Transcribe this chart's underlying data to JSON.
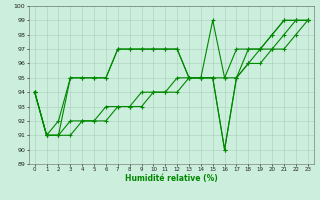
{
  "title": "",
  "xlabel": "Humidité relative (%)",
  "ylabel": "",
  "xlim": [
    -0.5,
    23.5
  ],
  "ylim": [
    89,
    100
  ],
  "yticks": [
    89,
    90,
    91,
    92,
    93,
    94,
    95,
    96,
    97,
    98,
    99,
    100
  ],
  "xticks": [
    0,
    1,
    2,
    3,
    4,
    5,
    6,
    7,
    8,
    9,
    10,
    11,
    12,
    13,
    14,
    15,
    16,
    17,
    18,
    19,
    20,
    21,
    22,
    23
  ],
  "background_color": "#cceedd",
  "grid_color": "#aaccbb",
  "line_color": "#008800",
  "lines": [
    [
      94,
      91,
      91,
      95,
      95,
      95,
      95,
      97,
      97,
      97,
      97,
      97,
      97,
      95,
      95,
      99,
      95,
      95,
      97,
      97,
      98,
      99,
      99,
      99
    ],
    [
      94,
      91,
      92,
      95,
      95,
      95,
      95,
      97,
      97,
      97,
      97,
      97,
      97,
      95,
      95,
      95,
      95,
      97,
      97,
      97,
      98,
      99,
      99,
      99
    ],
    [
      94,
      91,
      91,
      92,
      92,
      92,
      93,
      93,
      93,
      94,
      94,
      94,
      95,
      95,
      95,
      95,
      90,
      95,
      96,
      97,
      97,
      98,
      99,
      99
    ],
    [
      94,
      91,
      91,
      91,
      92,
      92,
      92,
      93,
      93,
      93,
      94,
      94,
      94,
      95,
      95,
      95,
      90,
      95,
      96,
      96,
      97,
      97,
      98,
      99
    ]
  ]
}
